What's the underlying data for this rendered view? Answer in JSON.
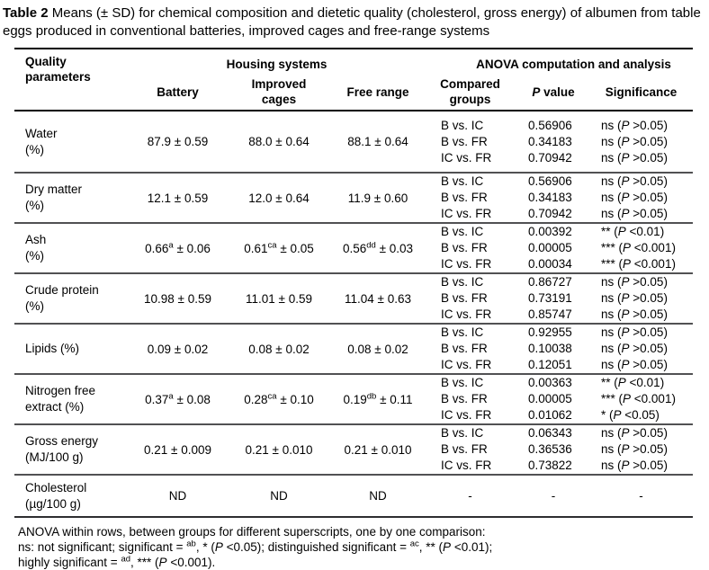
{
  "title": {
    "bold": "Table 2",
    "rest": " Means (± SD) for chemical composition and dietetic quality (cholesterol, gross energy) of albumen from table eggs produced in conventional batteries, improved cages and free-range systems"
  },
  "header": {
    "quality_parameters": "Quality parameters",
    "housing_systems": "Housing systems",
    "anova": "ANOVA computation and analysis",
    "battery": "Battery",
    "improved_cages": "Improved cages",
    "free_range": "Free range",
    "compared_groups": "Compared groups",
    "p_italic": "P",
    "p_rest": " value",
    "significance": "Significance"
  },
  "rows": [
    {
      "name_line1": "Water",
      "name_line2": "(%)",
      "values": [
        {
          "base": "87.9",
          "sup": "",
          "sd": " ± 0.59"
        },
        {
          "base": "88.0",
          "sup": "",
          "sd": " ± 0.64"
        },
        {
          "base": "88.1",
          "sup": "",
          "sd": " ± 0.64"
        }
      ],
      "comparisons": [
        {
          "groups": "B vs. IC",
          "p": "0.56906",
          "sig_pre": "ns (",
          "sig_p": "P",
          "sig_post": " >0.05)"
        },
        {
          "groups": "B vs. FR",
          "p": "0.34183",
          "sig_pre": "ns (",
          "sig_p": "P",
          "sig_post": " >0.05)"
        },
        {
          "groups": "IC vs. FR",
          "p": "0.70942",
          "sig_pre": "ns (",
          "sig_p": "P",
          "sig_post": " >0.05)"
        }
      ]
    },
    {
      "name_line1": "Dry matter",
      "name_line2": "(%)",
      "values": [
        {
          "base": "12.1",
          "sup": "",
          "sd": " ± 0.59"
        },
        {
          "base": "12.0",
          "sup": "",
          "sd": " ± 0.64"
        },
        {
          "base": "11.9",
          "sup": "",
          "sd": " ± 0.60"
        }
      ],
      "comparisons": [
        {
          "groups": "B vs. IC",
          "p": "0.56906",
          "sig_pre": "ns (",
          "sig_p": "P",
          "sig_post": " >0.05)"
        },
        {
          "groups": "B vs. FR",
          "p": "0.34183",
          "sig_pre": "ns (",
          "sig_p": "P",
          "sig_post": " >0.05)"
        },
        {
          "groups": "IC vs. FR",
          "p": "0.70942",
          "sig_pre": "ns (",
          "sig_p": "P",
          "sig_post": " >0.05)"
        }
      ]
    },
    {
      "name_line1": "Ash",
      "name_line2": "(%)",
      "values": [
        {
          "base": "0.66",
          "sup": "a",
          "sd": " ± 0.06"
        },
        {
          "base": "0.61",
          "sup": "ca",
          "sd": " ± 0.05"
        },
        {
          "base": "0.56",
          "sup": "dd",
          "sd": " ± 0.03"
        }
      ],
      "comparisons": [
        {
          "groups": "B vs. IC",
          "p": "0.00392",
          "sig_pre": "** (",
          "sig_p": "P",
          "sig_post": " <0.01)"
        },
        {
          "groups": "B vs. FR",
          "p": "0.00005",
          "sig_pre": "*** (",
          "sig_p": "P",
          "sig_post": " <0.001)"
        },
        {
          "groups": "IC vs. FR",
          "p": "0.00034",
          "sig_pre": "*** (",
          "sig_p": "P",
          "sig_post": " <0.001)"
        }
      ]
    },
    {
      "name_line1": "Crude protein",
      "name_line2": "(%)",
      "values": [
        {
          "base": "10.98",
          "sup": "",
          "sd": " ± 0.59"
        },
        {
          "base": "11.01",
          "sup": "",
          "sd": " ± 0.59"
        },
        {
          "base": "11.04",
          "sup": "",
          "sd": " ± 0.63"
        }
      ],
      "comparisons": [
        {
          "groups": "B vs. IC",
          "p": "0.86727",
          "sig_pre": "ns (",
          "sig_p": "P",
          "sig_post": " >0.05)"
        },
        {
          "groups": "B vs. FR",
          "p": "0.73191",
          "sig_pre": "ns (",
          "sig_p": "P",
          "sig_post": " >0.05)"
        },
        {
          "groups": "IC vs. FR",
          "p": "0.85747",
          "sig_pre": "ns (",
          "sig_p": "P",
          "sig_post": " >0.05)"
        }
      ]
    },
    {
      "name_line1": "Lipids (%)",
      "name_line2": "",
      "values": [
        {
          "base": "0.09",
          "sup": "",
          "sd": " ± 0.02"
        },
        {
          "base": "0.08",
          "sup": "",
          "sd": " ± 0.02"
        },
        {
          "base": "0.08",
          "sup": "",
          "sd": " ± 0.02"
        }
      ],
      "comparisons": [
        {
          "groups": "B vs. IC",
          "p": "0.92955",
          "sig_pre": "ns (",
          "sig_p": "P",
          "sig_post": " >0.05)"
        },
        {
          "groups": "B vs. FR",
          "p": "0.10038",
          "sig_pre": "ns (",
          "sig_p": "P",
          "sig_post": " >0.05)"
        },
        {
          "groups": "IC vs. FR",
          "p": "0.12051",
          "sig_pre": "ns (",
          "sig_p": "P",
          "sig_post": " >0.05)"
        }
      ]
    },
    {
      "name_line1": "Nitrogen free",
      "name_line2": "extract (%)",
      "values": [
        {
          "base": "0.37",
          "sup": "a",
          "sd": " ± 0.08"
        },
        {
          "base": "0.28",
          "sup": "ca",
          "sd": " ± 0.10"
        },
        {
          "base": "0.19",
          "sup": "db",
          "sd": " ± 0.11"
        }
      ],
      "comparisons": [
        {
          "groups": "B vs. IC",
          "p": "0.00363",
          "sig_pre": "** (",
          "sig_p": "P",
          "sig_post": " <0.01)"
        },
        {
          "groups": "B vs. FR",
          "p": "0.00005",
          "sig_pre": "*** (",
          "sig_p": "P",
          "sig_post": " <0.001)"
        },
        {
          "groups": "IC vs. FR",
          "p": "0.01062",
          "sig_pre": "* (",
          "sig_p": "P",
          "sig_post": " <0.05)"
        }
      ]
    },
    {
      "name_line1": "Gross energy",
      "name_line2": "(MJ/100 g)",
      "values": [
        {
          "base": "0.21",
          "sup": "",
          "sd": " ± 0.009"
        },
        {
          "base": "0.21",
          "sup": "",
          "sd": " ± 0.010"
        },
        {
          "base": "0.21",
          "sup": "",
          "sd": " ± 0.010"
        }
      ],
      "comparisons": [
        {
          "groups": "B vs. IC",
          "p": "0.06343",
          "sig_pre": "ns (",
          "sig_p": "P",
          "sig_post": " >0.05)"
        },
        {
          "groups": "B vs. FR",
          "p": "0.36536",
          "sig_pre": "ns (",
          "sig_p": "P",
          "sig_post": " >0.05)"
        },
        {
          "groups": "IC vs. FR",
          "p": "0.73822",
          "sig_pre": "ns (",
          "sig_p": "P",
          "sig_post": " >0.05)"
        }
      ]
    },
    {
      "name_line1": "Cholesterol",
      "name_line2": "(µg/100 g)",
      "values": [
        {
          "base": "ND",
          "sup": "",
          "sd": ""
        },
        {
          "base": "ND",
          "sup": "",
          "sd": ""
        },
        {
          "base": "ND",
          "sup": "",
          "sd": ""
        }
      ],
      "comparisons": [
        {
          "groups": "-",
          "p": "-",
          "sig_pre": "-",
          "sig_p": "",
          "sig_post": ""
        }
      ]
    }
  ],
  "footnote": {
    "lines": [
      [
        {
          "t": "ANOVA within rows, between groups for different superscripts, one by one comparison:"
        }
      ],
      [
        {
          "t": "ns: not significant; significant = "
        },
        {
          "t": "ab",
          "s": "sup"
        },
        {
          "t": ", * ("
        },
        {
          "t": "P",
          "s": "i"
        },
        {
          "t": " <0.05); distinguished significant = "
        },
        {
          "t": "ac",
          "s": "sup"
        },
        {
          "t": ", ** ("
        },
        {
          "t": "P",
          "s": "i"
        },
        {
          "t": " <0.01);"
        }
      ],
      [
        {
          "t": "highly significant = "
        },
        {
          "t": "ad",
          "s": "sup"
        },
        {
          "t": ", *** ("
        },
        {
          "t": "P",
          "s": "i"
        },
        {
          "t": " <0.001)."
        }
      ]
    ]
  }
}
